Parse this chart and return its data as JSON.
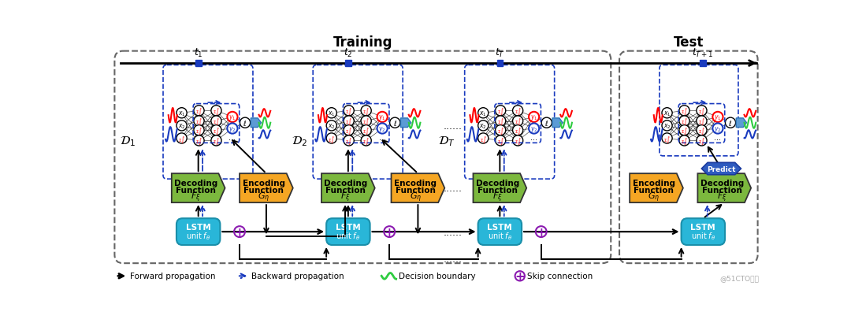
{
  "bg_color": "#ffffff",
  "title_training": "Training",
  "title_test": "Test",
  "lstm_color": "#29b6d8",
  "decode_color": "#7cb83e",
  "encode_color": "#f5a623",
  "lstm_text_color": "#ffffff",
  "arrow_blue": "#1a3bbf",
  "arrow_purple": "#8b1ab0",
  "watermark": "@51CTO博客",
  "fig_w": 10.8,
  "fig_h": 4.06,
  "dpi": 100
}
